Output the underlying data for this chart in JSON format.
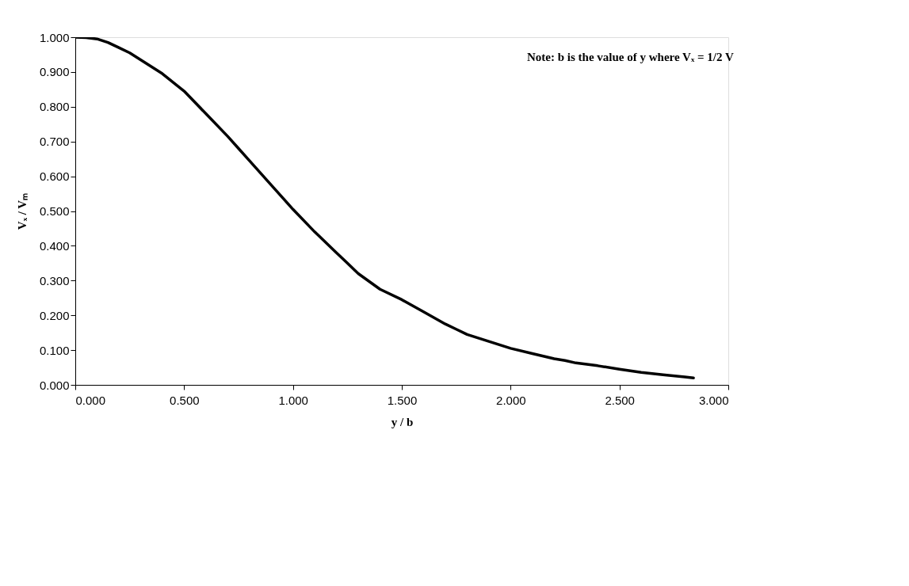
{
  "chart_data": {
    "type": "line",
    "xlabel": "y / b",
    "ylabel": "Vₓ / Vₘ",
    "annotations": [
      "Note: b is the value of y where Vₓ = 1/2 V"
    ],
    "x": [
      0,
      0.05,
      0.1,
      0.15,
      0.2,
      0.25,
      0.3,
      0.4,
      0.5,
      0.6,
      0.7,
      0.75,
      0.8,
      0.9,
      1.0,
      1.1,
      1.2,
      1.25,
      1.3,
      1.4,
      1.5,
      1.6,
      1.7,
      1.75,
      1.8,
      1.9,
      2.0,
      2.1,
      2.2,
      2.25,
      2.3,
      2.4,
      2.5,
      2.6,
      2.7,
      2.8,
      2.84
    ],
    "series": [
      {
        "color": "#000000",
        "values": [
          1.0,
          0.999,
          0.995,
          0.985,
          0.97,
          0.955,
          0.935,
          0.895,
          0.845,
          0.78,
          0.715,
          0.68,
          0.645,
          0.575,
          0.505,
          0.44,
          0.38,
          0.35,
          0.32,
          0.275,
          0.245,
          0.21,
          0.175,
          0.16,
          0.145,
          0.125,
          0.105,
          0.09,
          0.075,
          0.07,
          0.063,
          0.055,
          0.045,
          0.036,
          0.029,
          0.023,
          0.02
        ]
      }
    ],
    "xlim": [
      0,
      3.0
    ],
    "ylim": [
      0,
      1.0
    ],
    "xticks": [
      {
        "value": 0,
        "label": "0.000"
      },
      {
        "value": 0.5,
        "label": "0.500"
      },
      {
        "value": 1.0,
        "label": "1.000"
      },
      {
        "value": 1.5,
        "label": "1.500"
      },
      {
        "value": 2.0,
        "label": "2.000"
      },
      {
        "value": 2.5,
        "label": "2.500"
      },
      {
        "value": 3.0,
        "label": "3.000"
      }
    ],
    "yticks": [
      {
        "value": 0,
        "label": "0.000"
      },
      {
        "value": 0.1,
        "label": "0.100"
      },
      {
        "value": 0.2,
        "label": "0.200"
      },
      {
        "value": 0.3,
        "label": "0.300"
      },
      {
        "value": 0.4,
        "label": "0.400"
      },
      {
        "value": 0.5,
        "label": "0.500"
      },
      {
        "value": 0.6,
        "label": "0.600"
      },
      {
        "value": 0.7,
        "label": "0.700"
      },
      {
        "value": 0.8,
        "label": "0.800"
      },
      {
        "value": 0.9,
        "label": "0.900"
      },
      {
        "value": 1.0,
        "label": "1.000"
      }
    ],
    "grid": false,
    "marker": "none",
    "line_style": "solid"
  }
}
